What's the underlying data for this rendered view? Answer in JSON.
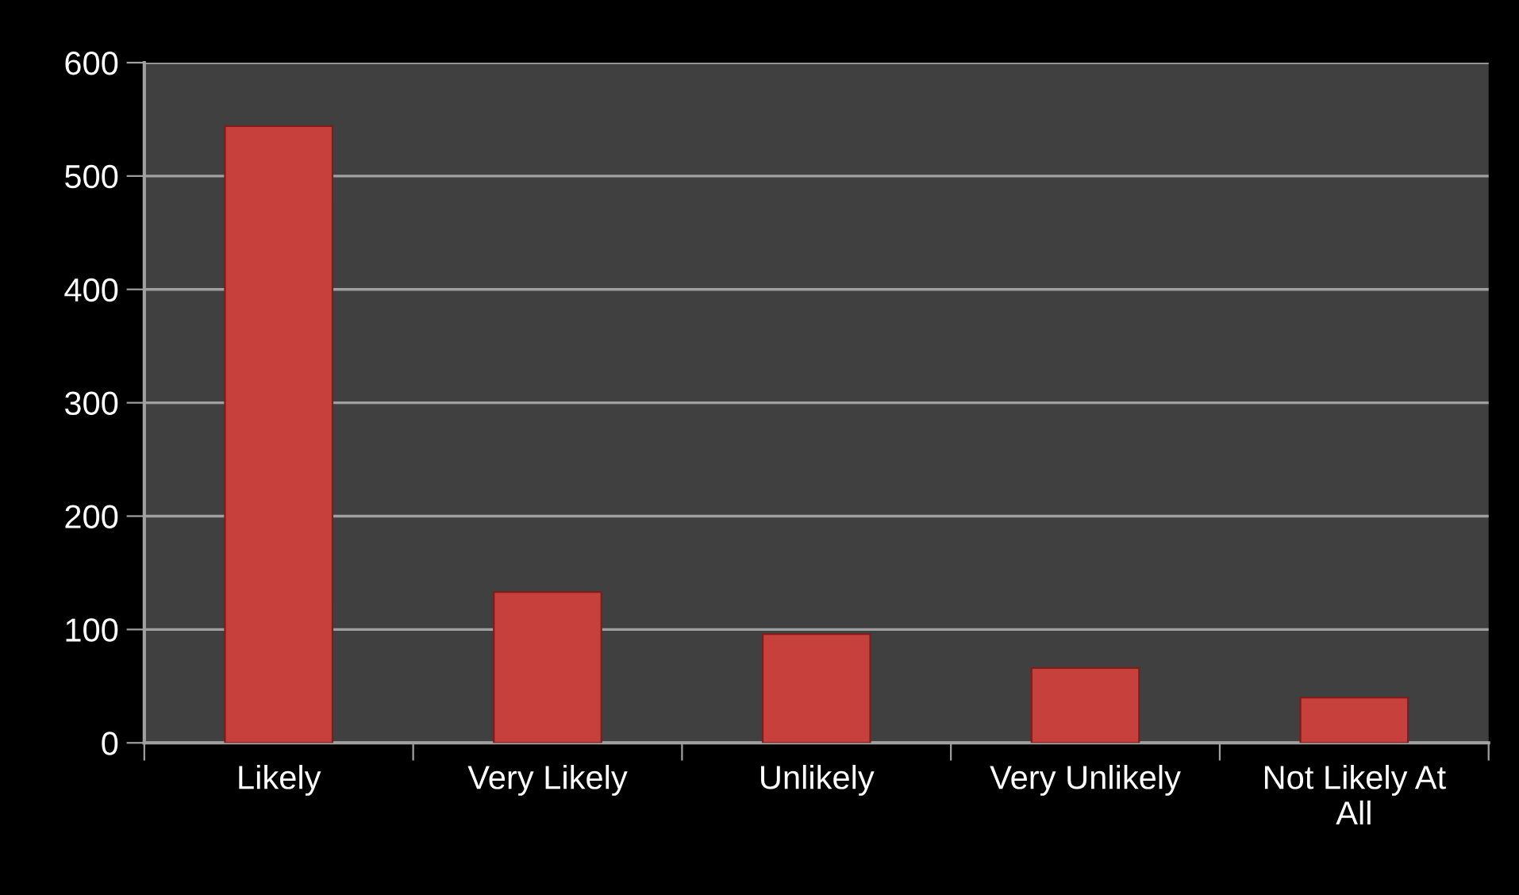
{
  "chart_data": {
    "type": "bar",
    "categories": [
      "Likely",
      "Very Likely",
      "Unlikely",
      "Very Unlikely",
      "Not Likely At\nAll"
    ],
    "values": [
      544,
      133,
      96,
      66,
      40
    ],
    "color": "#c8403c",
    "ylim": [
      0,
      600
    ],
    "yticks": [
      0,
      100,
      200,
      300,
      400,
      500,
      600
    ],
    "grid": "y"
  }
}
